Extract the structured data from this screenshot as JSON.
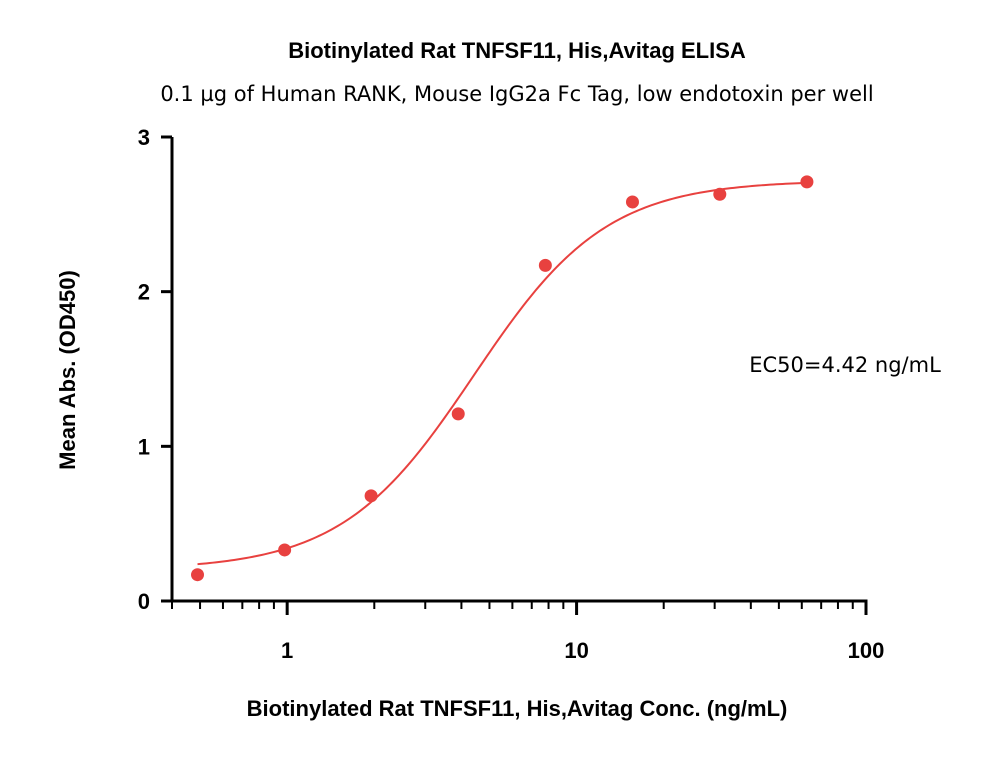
{
  "chart_data": {
    "type": "scatter",
    "title": "Biotinylated Rat TNFSF11, His,Avitag ELISA",
    "subtitle": "0.1 µg of Human RANK, Mouse IgG2a Fc Tag, low endotoxin per well",
    "xlabel": "Biotinylated Rat TNFSF11, His,Avitag Conc. (ng/mL)",
    "ylabel": "Mean Abs. (OD450)",
    "x_scale": "log",
    "xlim": [
      0.4,
      100
    ],
    "ylim": [
      0,
      3
    ],
    "x_ticks": [
      1,
      10,
      100
    ],
    "x_tick_labels": [
      "1",
      "10",
      "100"
    ],
    "y_ticks": [
      0,
      1,
      2,
      3
    ],
    "y_tick_labels": [
      "0",
      "1",
      "2",
      "3"
    ],
    "grid": false,
    "legend": "none",
    "series": [
      {
        "color": "#e8413f",
        "x": [
          0.49,
          0.98,
          1.95,
          3.9,
          7.8,
          15.6,
          31.25,
          62.5
        ],
        "y": [
          0.17,
          0.33,
          0.68,
          1.21,
          2.17,
          2.58,
          2.63,
          2.71
        ]
      }
    ],
    "fit_curve": {
      "model": "4PL",
      "bottom": 0.2,
      "top": 2.72,
      "ec50": 4.42,
      "hill": 1.9,
      "color": "#e8413f"
    },
    "annotation": "EC50=4.42 ng/mL"
  }
}
